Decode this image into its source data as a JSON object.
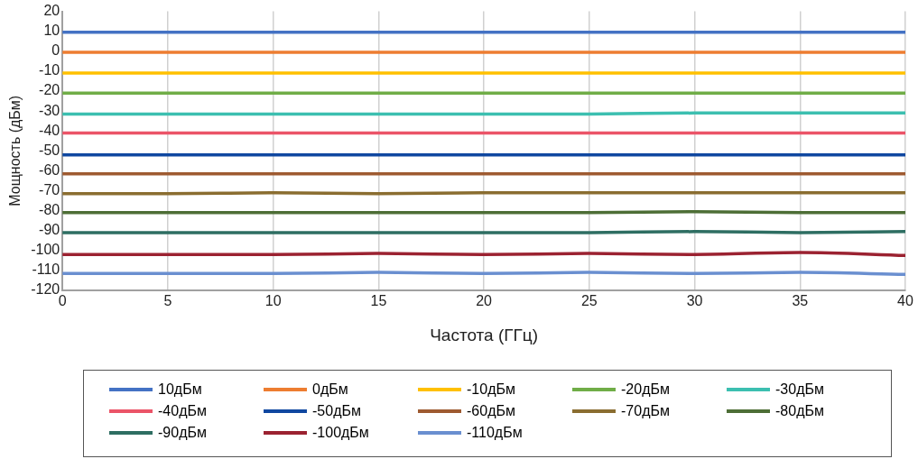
{
  "chart_data": {
    "type": "line",
    "xlabel": "Частота (ГГц)",
    "ylabel": "Мощность (дБм)",
    "x": [
      0,
      5,
      10,
      15,
      20,
      25,
      30,
      35,
      40
    ],
    "xlim": [
      0,
      40
    ],
    "xticks": [
      0,
      5,
      10,
      15,
      20,
      25,
      30,
      35,
      40
    ],
    "ylim": [
      -120,
      20
    ],
    "yticks": [
      -120,
      -110,
      -100,
      -90,
      -80,
      -70,
      -60,
      -50,
      -40,
      -30,
      -20,
      -10,
      0,
      10,
      20
    ],
    "grid": "x",
    "legend": "bottom",
    "marker": "none",
    "line_style": "solid",
    "series": [
      {
        "name": "10дБм",
        "color": "#4472c4",
        "values": [
          9.5,
          9.5,
          9.5,
          9.5,
          9.5,
          9.5,
          9.5,
          9.5,
          9.5
        ]
      },
      {
        "name": "0дБм",
        "color": "#ed7d31",
        "values": [
          -0.5,
          -0.5,
          -0.5,
          -0.5,
          -0.5,
          -0.5,
          -0.5,
          -0.5,
          -0.5
        ]
      },
      {
        "name": "-10дБм",
        "color": "#ffc000",
        "values": [
          -11,
          -11,
          -11,
          -11,
          -11,
          -11,
          -11,
          -11,
          -11
        ]
      },
      {
        "name": "-20дБм",
        "color": "#70ad47",
        "values": [
          -21,
          -21,
          -21,
          -21,
          -21,
          -21,
          -21,
          -21,
          -21
        ]
      },
      {
        "name": "-30дБм",
        "color": "#3cbfb0",
        "values": [
          -31.5,
          -31.5,
          -31.5,
          -31.5,
          -31.5,
          -31.5,
          -31,
          -31,
          -31
        ]
      },
      {
        "name": "-40дБм",
        "color": "#eb5468",
        "values": [
          -41,
          -41,
          -41,
          -41,
          -41,
          -41,
          -41,
          -41,
          -41
        ]
      },
      {
        "name": "-50дБм",
        "color": "#0f47a0",
        "values": [
          -52,
          -52,
          -52,
          -52,
          -52,
          -52,
          -52,
          -52,
          -52
        ]
      },
      {
        "name": "-60дБм",
        "color": "#9e5a30",
        "values": [
          -61.5,
          -61.5,
          -61.5,
          -61.5,
          -61.5,
          -61.5,
          -61.5,
          -61.5,
          -61.5
        ]
      },
      {
        "name": "-70дБм",
        "color": "#8a6d30",
        "values": [
          -71.5,
          -71.5,
          -71,
          -71.5,
          -71,
          -71,
          -71,
          -71,
          -71
        ]
      },
      {
        "name": "-80дБм",
        "color": "#4d6e36",
        "values": [
          -81,
          -81,
          -81,
          -81,
          -81,
          -81,
          -80.5,
          -81,
          -81
        ]
      },
      {
        "name": "-90дБм",
        "color": "#2e6e62",
        "values": [
          -91,
          -91,
          -91,
          -91,
          -91,
          -91,
          -90.5,
          -91,
          -90.5
        ]
      },
      {
        "name": "-100дБм",
        "color": "#9b2231",
        "values": [
          -102,
          -102,
          -102,
          -101.5,
          -102,
          -101.5,
          -102,
          -101,
          -102.5
        ]
      },
      {
        "name": "-110дБм",
        "color": "#6a8fd0",
        "values": [
          -111.5,
          -111.5,
          -111.5,
          -111,
          -111.5,
          -111,
          -111.5,
          -111,
          -112
        ]
      }
    ]
  }
}
